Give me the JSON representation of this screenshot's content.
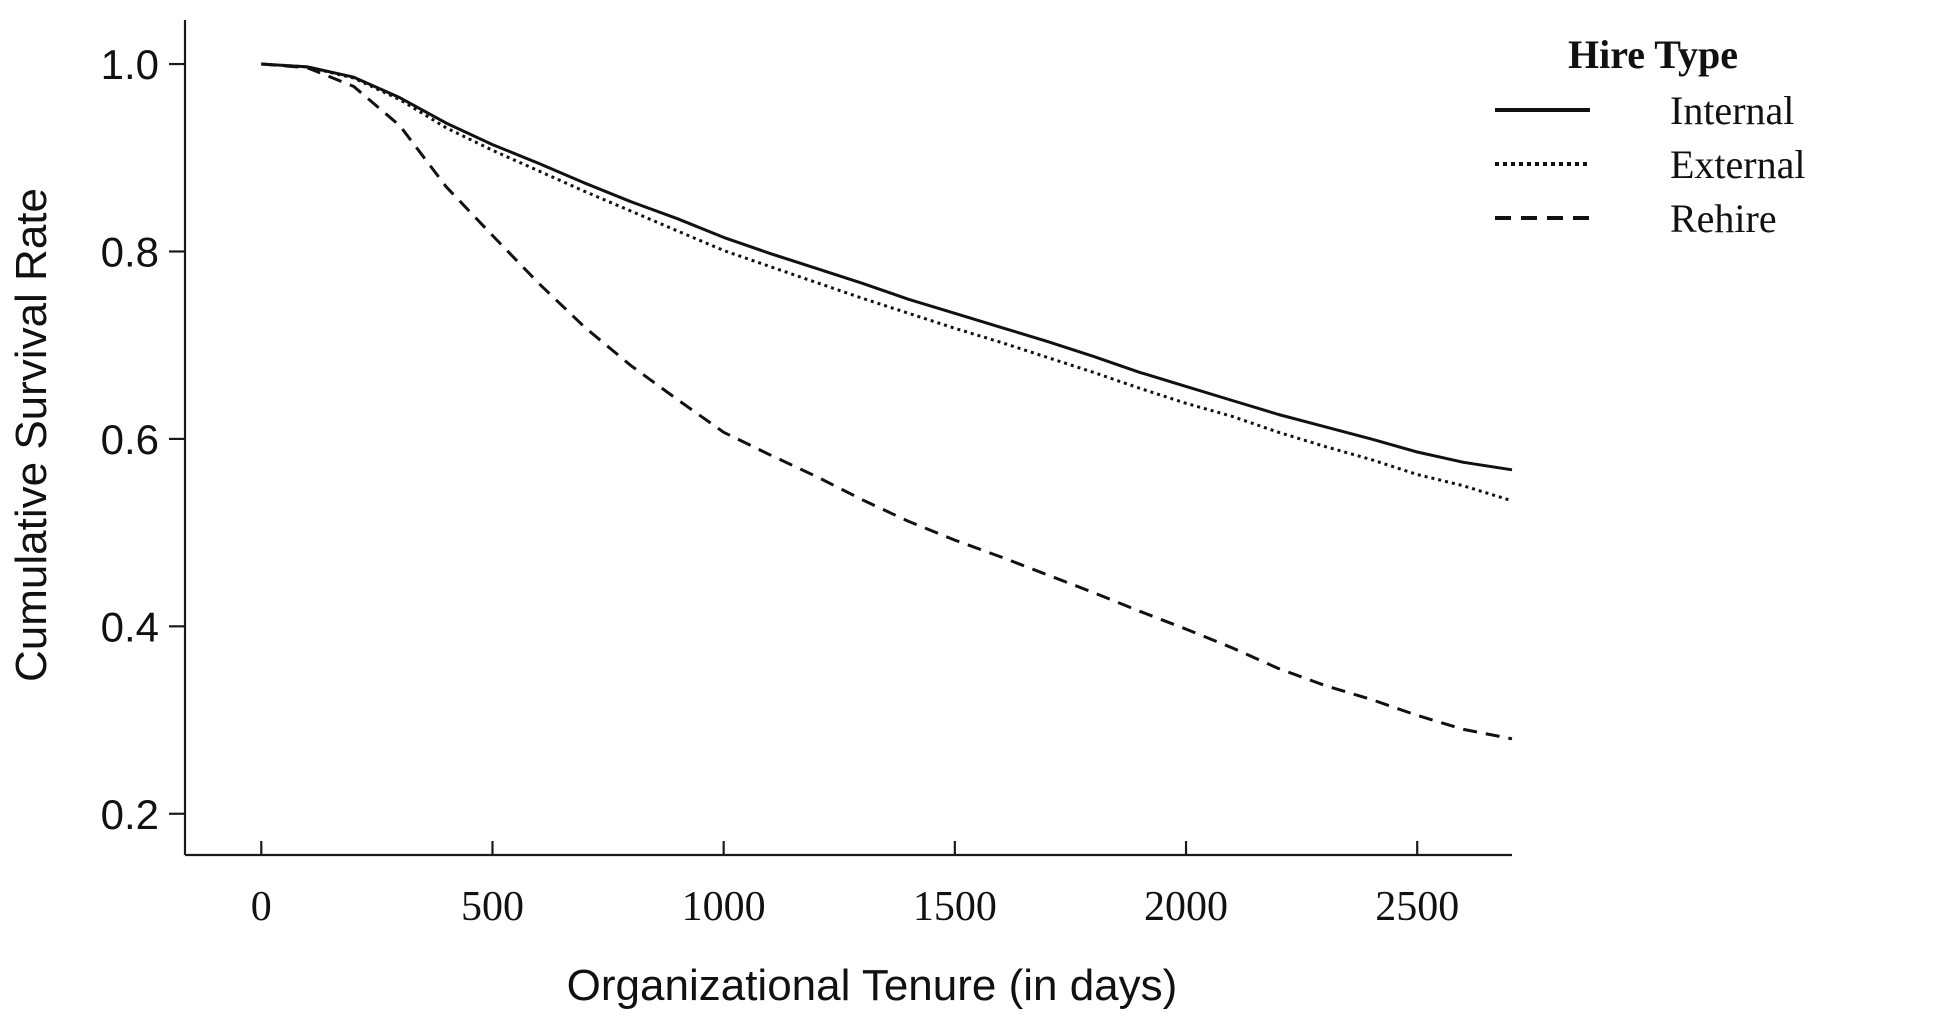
{
  "chart_data": {
    "type": "line",
    "xlabel": "Organizational Tenure (in days)",
    "ylabel": "Cumulative Survival Rate",
    "xlim": [
      -165,
      2705
    ],
    "ylim": [
      0.156,
      1.047
    ],
    "xticks": [
      "0",
      "500",
      "1000",
      "1500",
      "2000",
      "2500"
    ],
    "xtick_values": [
      0,
      500,
      1000,
      1500,
      2000,
      2500
    ],
    "yticks": [
      "0.2",
      "0.4",
      "0.6",
      "0.8",
      "1.0"
    ],
    "ytick_values": [
      0.2,
      0.4,
      0.6,
      0.8,
      1.0
    ],
    "grid": false,
    "legend": {
      "title": "Hire Type",
      "position": "top-right"
    },
    "series": [
      {
        "name": "Internal",
        "style": "solid",
        "color": "#111111",
        "x": [
          0,
          100,
          200,
          300,
          400,
          500,
          600,
          700,
          800,
          900,
          1000,
          1100,
          1200,
          1300,
          1400,
          1500,
          1600,
          1700,
          1800,
          1900,
          2000,
          2100,
          2200,
          2300,
          2400,
          2500,
          2600,
          2705
        ],
        "y": [
          1.0,
          0.997,
          0.986,
          0.964,
          0.937,
          0.914,
          0.894,
          0.873,
          0.853,
          0.835,
          0.815,
          0.798,
          0.782,
          0.766,
          0.749,
          0.734,
          0.719,
          0.704,
          0.688,
          0.671,
          0.656,
          0.641,
          0.626,
          0.613,
          0.6,
          0.586,
          0.575,
          0.567
        ]
      },
      {
        "name": "External",
        "style": "dotted",
        "color": "#111111",
        "x": [
          0,
          100,
          200,
          300,
          400,
          500,
          600,
          700,
          800,
          900,
          1000,
          1100,
          1200,
          1300,
          1400,
          1500,
          1600,
          1700,
          1800,
          1900,
          2000,
          2100,
          2200,
          2300,
          2400,
          2500,
          2600,
          2705
        ],
        "y": [
          1.0,
          0.997,
          0.985,
          0.962,
          0.932,
          0.908,
          0.886,
          0.864,
          0.843,
          0.822,
          0.801,
          0.784,
          0.767,
          0.75,
          0.734,
          0.718,
          0.703,
          0.687,
          0.671,
          0.654,
          0.638,
          0.624,
          0.607,
          0.592,
          0.578,
          0.562,
          0.55,
          0.534
        ]
      },
      {
        "name": "Rehire",
        "style": "dashed",
        "color": "#111111",
        "x": [
          0,
          100,
          200,
          300,
          400,
          500,
          600,
          700,
          800,
          900,
          1000,
          1100,
          1200,
          1300,
          1400,
          1500,
          1600,
          1700,
          1800,
          1900,
          2000,
          2100,
          2200,
          2300,
          2400,
          2500,
          2600,
          2705
        ],
        "y": [
          1.0,
          0.996,
          0.976,
          0.934,
          0.869,
          0.817,
          0.766,
          0.719,
          0.678,
          0.642,
          0.607,
          0.583,
          0.56,
          0.535,
          0.512,
          0.492,
          0.474,
          0.455,
          0.436,
          0.416,
          0.397,
          0.377,
          0.355,
          0.337,
          0.322,
          0.305,
          0.29,
          0.28
        ]
      }
    ]
  }
}
